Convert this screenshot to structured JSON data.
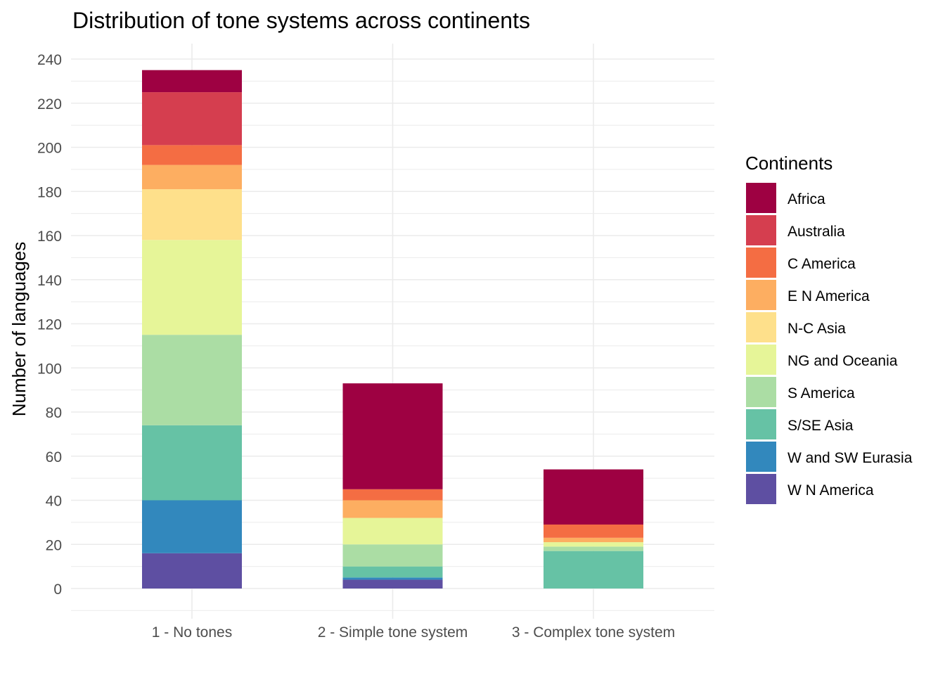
{
  "chart_data": {
    "type": "bar",
    "stacked": true,
    "title": "Distribution of tone systems across continents",
    "xlabel": "",
    "ylabel": "Number of languages",
    "ylim": [
      -10,
      248
    ],
    "yticks": [
      0,
      20,
      40,
      60,
      80,
      100,
      120,
      140,
      160,
      180,
      200,
      220,
      240
    ],
    "grid": true,
    "legend": {
      "title": "Continents",
      "position": "right"
    },
    "categories": [
      "1 - No tones",
      "2 - Simple tone system",
      "3 - Complex tone system"
    ],
    "series": [
      {
        "name": "W N America",
        "color": "#5E4FA2",
        "values": [
          16,
          4,
          0
        ]
      },
      {
        "name": "W and SW Eurasia",
        "color": "#3288BD",
        "values": [
          24,
          1,
          0
        ]
      },
      {
        "name": "S/SE Asia",
        "color": "#66C2A5",
        "values": [
          34,
          5,
          17
        ]
      },
      {
        "name": "S America",
        "color": "#ABDDA4",
        "values": [
          41,
          10,
          2
        ]
      },
      {
        "name": "NG and Oceania",
        "color": "#E6F598",
        "values": [
          43,
          12,
          2
        ]
      },
      {
        "name": "N-C Asia",
        "color": "#FEE08B",
        "values": [
          23,
          0,
          0
        ]
      },
      {
        "name": "E N America",
        "color": "#FDAE61",
        "values": [
          11,
          8,
          2
        ]
      },
      {
        "name": "C America",
        "color": "#F46D43",
        "values": [
          9,
          5,
          6
        ]
      },
      {
        "name": "Australia",
        "color": "#D53E4F",
        "values": [
          24,
          0,
          0
        ]
      },
      {
        "name": "Africa",
        "color": "#9E0142",
        "values": [
          10,
          48,
          25
        ]
      }
    ]
  }
}
